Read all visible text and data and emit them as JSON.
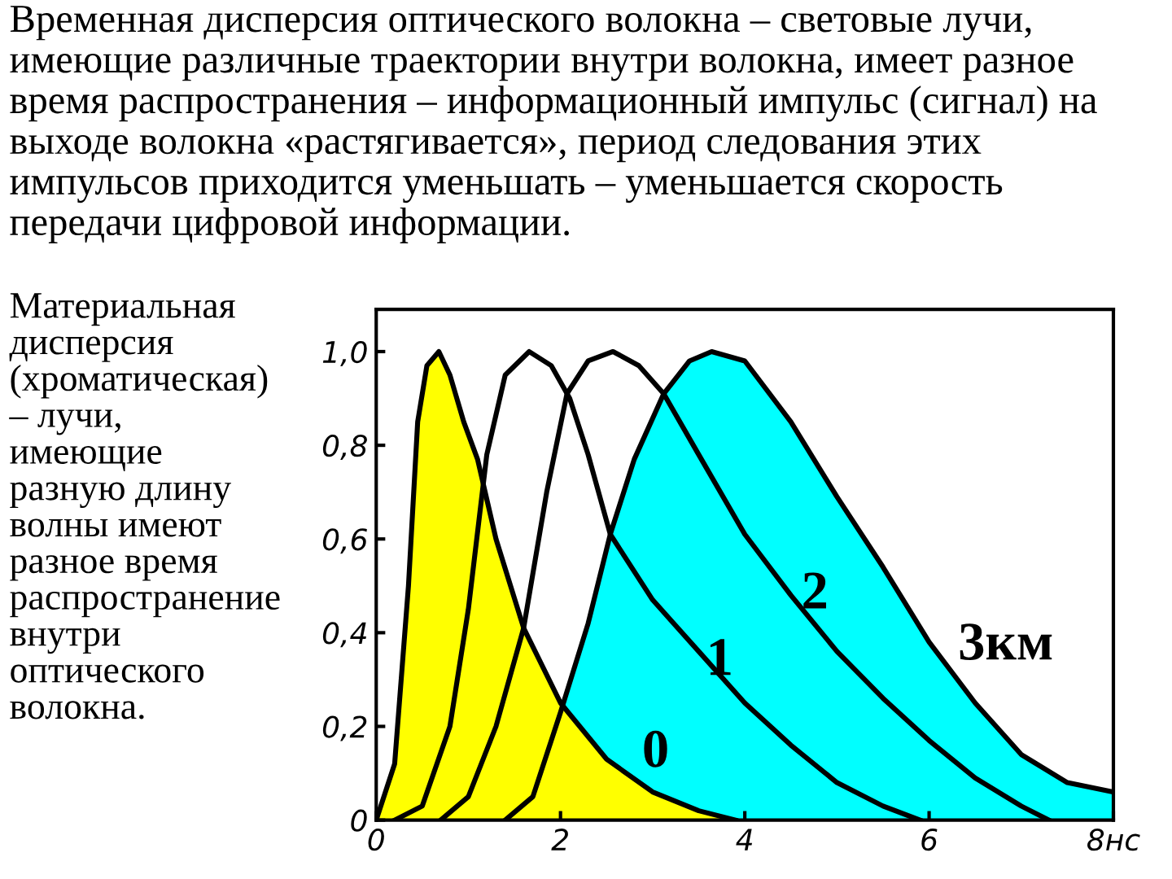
{
  "chart_data": {
    "type": "line",
    "title": "Временная дисперсия оптического волокна – световые лучи,\nимеющие различные траектории внутри волокна, имеет разное\nвремя распространения – информационный импульс (сигнал) на\nвыходе волокна «растягивается», период следования этих\nимпульсов приходится уменьшать – уменьшается скорость\nпередачи цифровой информации.",
    "xlim": [
      0,
      8
    ],
    "ylim": [
      0,
      1.09
    ],
    "xticks": [
      0,
      2,
      4,
      6,
      {
        "value": 8,
        "label": "8нс"
      }
    ],
    "yticks": [
      {
        "value": 0,
        "label": "0"
      },
      {
        "value": 0.2,
        "label": "0,2"
      },
      {
        "value": 0.4,
        "label": "0,4"
      },
      {
        "value": 0.6,
        "label": "0,6"
      },
      {
        "value": 0.8,
        "label": "0,8"
      },
      {
        "value": 1.0,
        "label": "1,0"
      }
    ],
    "grid": false,
    "legend": false,
    "series": [
      {
        "type": "area",
        "name": "3км",
        "color": "#00ffff",
        "x": [
          1.4,
          1.7,
          2.0,
          2.3,
          2.54,
          2.8,
          3.12,
          3.4,
          3.64,
          4.0,
          4.5,
          5.0,
          5.5,
          6.0,
          6.5,
          7.0,
          7.5,
          8.0
        ],
        "values": [
          0,
          0.05,
          0.23,
          0.42,
          0.61,
          0.77,
          0.91,
          0.98,
          1.0,
          0.98,
          0.85,
          0.69,
          0.54,
          0.38,
          0.25,
          0.14,
          0.08,
          0.06
        ]
      },
      {
        "type": "area",
        "name": "0",
        "color": "#ffff00",
        "x": [
          0,
          0.2,
          0.35,
          0.45,
          0.55,
          0.68,
          0.8,
          0.95,
          1.1,
          1.3,
          1.6,
          2.0,
          2.5,
          3.0,
          3.5,
          3.9
        ],
        "values": [
          0,
          0.12,
          0.5,
          0.85,
          0.97,
          1.0,
          0.95,
          0.85,
          0.77,
          0.6,
          0.41,
          0.25,
          0.13,
          0.06,
          0.02,
          0
        ]
      },
      {
        "name": "1",
        "color": "#000000",
        "x": [
          0.2,
          0.5,
          0.8,
          1.0,
          1.2,
          1.4,
          1.66,
          1.9,
          2.1,
          2.3,
          2.54,
          3.0,
          3.5,
          4.0,
          4.5,
          5.0,
          5.5,
          5.9
        ],
        "values": [
          0,
          0.03,
          0.2,
          0.45,
          0.78,
          0.95,
          1.0,
          0.97,
          0.9,
          0.78,
          0.61,
          0.47,
          0.36,
          0.25,
          0.16,
          0.08,
          0.03,
          0
        ]
      },
      {
        "name": "2",
        "color": "#000000",
        "x": [
          0.7,
          1.0,
          1.3,
          1.6,
          1.85,
          2.07,
          2.3,
          2.57,
          2.85,
          3.12,
          3.5,
          4.0,
          4.5,
          5.0,
          5.5,
          6.0,
          6.5,
          7.0,
          7.3
        ],
        "values": [
          0,
          0.05,
          0.2,
          0.41,
          0.7,
          0.91,
          0.98,
          1.0,
          0.97,
          0.91,
          0.78,
          0.61,
          0.48,
          0.36,
          0.26,
          0.17,
          0.09,
          0.03,
          0
        ]
      }
    ],
    "annotations": [
      "Материальная\nдисперсия\n(хроматическая)\n– лучи,\nимеющие\nразную длину\nволны имеют\nразное время\nраспространение\nвнутри\nоптического\nволокна."
    ]
  }
}
